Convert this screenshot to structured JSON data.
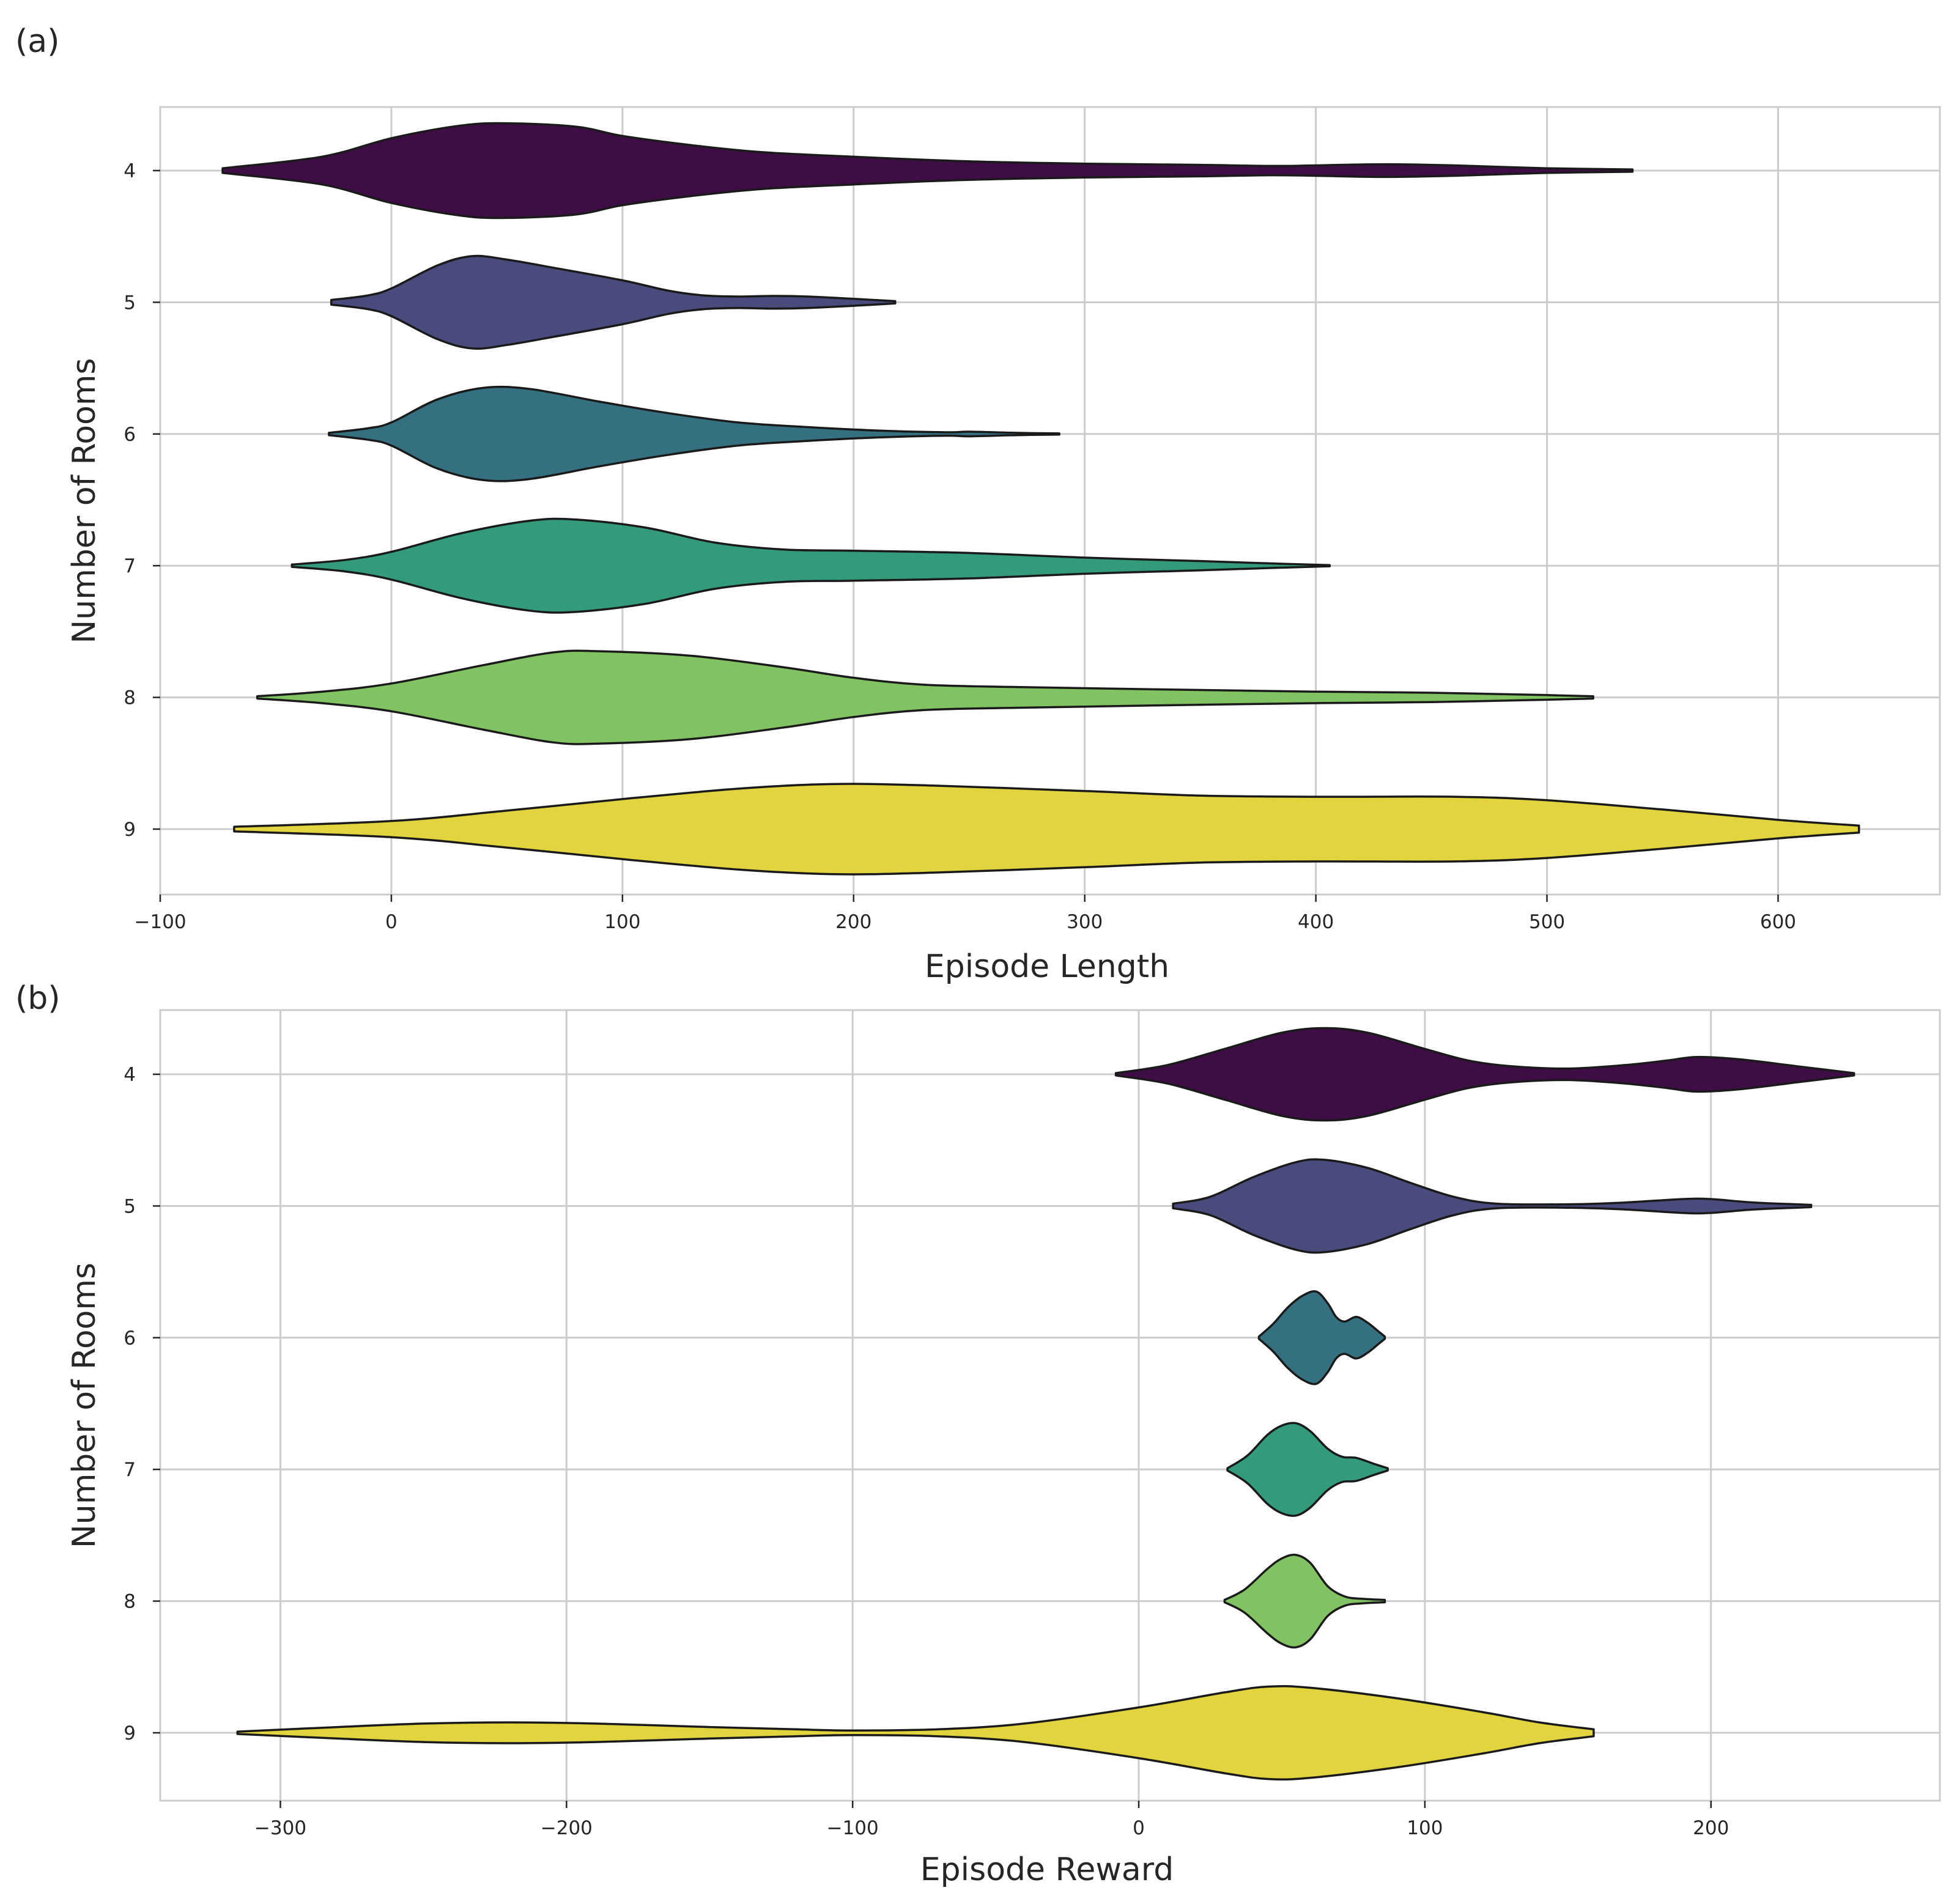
{
  "chart_data": [
    {
      "type": "violin",
      "panel_label": "(a)",
      "orientation": "horizontal",
      "xlabel": "Episode Length",
      "ylabel": "Number of Rooms",
      "xlim": [
        -100,
        670
      ],
      "xticks": [
        -100,
        0,
        100,
        200,
        300,
        400,
        500,
        600
      ],
      "xtick_labels": [
        "−100",
        "0",
        "100",
        "200",
        "300",
        "400",
        "500",
        "600"
      ],
      "categories": [
        "4",
        "5",
        "6",
        "7",
        "8",
        "9"
      ],
      "grid": true,
      "series": [
        {
          "category": "4",
          "color": "#3f0d46",
          "range": [
            -73,
            537
          ],
          "profile": [
            [
              -73,
              0.02
            ],
            [
              -30,
              0.12
            ],
            [
              0,
              0.28
            ],
            [
              30,
              0.39
            ],
            [
              50,
              0.41
            ],
            [
              80,
              0.38
            ],
            [
              100,
              0.3
            ],
            [
              130,
              0.22
            ],
            [
              160,
              0.16
            ],
            [
              200,
              0.12
            ],
            [
              250,
              0.08
            ],
            [
              300,
              0.06
            ],
            [
              350,
              0.05
            ],
            [
              380,
              0.04
            ],
            [
              400,
              0.045
            ],
            [
              430,
              0.055
            ],
            [
              460,
              0.045
            ],
            [
              500,
              0.02
            ],
            [
              537,
              0.01
            ]
          ]
        },
        {
          "category": "5",
          "color": "#484b7b",
          "range": [
            -26,
            218
          ],
          "profile": [
            [
              -26,
              0.02
            ],
            [
              -10,
              0.06
            ],
            [
              0,
              0.12
            ],
            [
              20,
              0.32
            ],
            [
              35,
              0.4
            ],
            [
              50,
              0.37
            ],
            [
              70,
              0.3
            ],
            [
              100,
              0.19
            ],
            [
              120,
              0.1
            ],
            [
              135,
              0.06
            ],
            [
              150,
              0.05
            ],
            [
              165,
              0.055
            ],
            [
              180,
              0.05
            ],
            [
              200,
              0.03
            ],
            [
              218,
              0.01
            ]
          ]
        },
        {
          "category": "6",
          "color": "#357081",
          "range": [
            -27,
            289
          ],
          "profile": [
            [
              -27,
              0.01
            ],
            [
              -10,
              0.05
            ],
            [
              0,
              0.1
            ],
            [
              20,
              0.3
            ],
            [
              40,
              0.4
            ],
            [
              60,
              0.39
            ],
            [
              90,
              0.28
            ],
            [
              120,
              0.18
            ],
            [
              150,
              0.1
            ],
            [
              180,
              0.06
            ],
            [
              210,
              0.03
            ],
            [
              240,
              0.015
            ],
            [
              250,
              0.02
            ],
            [
              270,
              0.01
            ],
            [
              289,
              0.005
            ]
          ]
        },
        {
          "category": "7",
          "color": "#339a7c",
          "range": [
            -43,
            406
          ],
          "profile": [
            [
              -43,
              0.01
            ],
            [
              -20,
              0.05
            ],
            [
              0,
              0.12
            ],
            [
              30,
              0.28
            ],
            [
              60,
              0.39
            ],
            [
              80,
              0.4
            ],
            [
              110,
              0.33
            ],
            [
              140,
              0.2
            ],
            [
              170,
              0.14
            ],
            [
              200,
              0.13
            ],
            [
              250,
              0.11
            ],
            [
              300,
              0.07
            ],
            [
              350,
              0.04
            ],
            [
              380,
              0.02
            ],
            [
              406,
              0.005
            ]
          ]
        },
        {
          "category": "8",
          "color": "#81c362",
          "range": [
            -58,
            520
          ],
          "profile": [
            [
              -58,
              0.01
            ],
            [
              -30,
              0.05
            ],
            [
              0,
              0.12
            ],
            [
              40,
              0.28
            ],
            [
              70,
              0.39
            ],
            [
              90,
              0.4
            ],
            [
              130,
              0.36
            ],
            [
              170,
              0.26
            ],
            [
              200,
              0.17
            ],
            [
              230,
              0.11
            ],
            [
              270,
              0.09
            ],
            [
              330,
              0.07
            ],
            [
              400,
              0.05
            ],
            [
              450,
              0.04
            ],
            [
              500,
              0.02
            ],
            [
              520,
              0.01
            ]
          ]
        },
        {
          "category": "9",
          "color": "#e1d43e",
          "range": [
            -68,
            635
          ],
          "profile": [
            [
              -68,
              0.02
            ],
            [
              0,
              0.07
            ],
            [
              50,
              0.16
            ],
            [
              100,
              0.26
            ],
            [
              150,
              0.35
            ],
            [
              190,
              0.39
            ],
            [
              230,
              0.38
            ],
            [
              300,
              0.33
            ],
            [
              350,
              0.29
            ],
            [
              400,
              0.28
            ],
            [
              460,
              0.28
            ],
            [
              500,
              0.25
            ],
            [
              550,
              0.17
            ],
            [
              600,
              0.08
            ],
            [
              635,
              0.03
            ]
          ]
        }
      ]
    },
    {
      "type": "violin",
      "panel_label": "(b)",
      "orientation": "horizontal",
      "xlabel": "Episode Reward",
      "ylabel": "Number of Rooms",
      "xlim": [
        -342,
        280
      ],
      "xticks": [
        -300,
        -200,
        -100,
        0,
        100,
        200
      ],
      "xtick_labels": [
        "−300",
        "−200",
        "−100",
        "0",
        "100",
        "200"
      ],
      "categories": [
        "4",
        "5",
        "6",
        "7",
        "8",
        "9"
      ],
      "grid": true,
      "series": [
        {
          "category": "4",
          "color": "#3f0d46",
          "range": [
            -8,
            250
          ],
          "profile": [
            [
              -8,
              0.01
            ],
            [
              10,
              0.08
            ],
            [
              30,
              0.22
            ],
            [
              50,
              0.36
            ],
            [
              65,
              0.4
            ],
            [
              80,
              0.36
            ],
            [
              100,
              0.22
            ],
            [
              115,
              0.12
            ],
            [
              130,
              0.07
            ],
            [
              150,
              0.05
            ],
            [
              170,
              0.08
            ],
            [
              185,
              0.12
            ],
            [
              195,
              0.15
            ],
            [
              210,
              0.13
            ],
            [
              230,
              0.07
            ],
            [
              250,
              0.01
            ]
          ]
        },
        {
          "category": "5",
          "color": "#484b7b",
          "range": [
            12,
            235
          ],
          "profile": [
            [
              12,
              0.02
            ],
            [
              25,
              0.08
            ],
            [
              40,
              0.25
            ],
            [
              55,
              0.38
            ],
            [
              65,
              0.4
            ],
            [
              80,
              0.33
            ],
            [
              95,
              0.2
            ],
            [
              110,
              0.08
            ],
            [
              125,
              0.02
            ],
            [
              150,
              0.015
            ],
            [
              170,
              0.03
            ],
            [
              190,
              0.06
            ],
            [
              200,
              0.06
            ],
            [
              215,
              0.03
            ],
            [
              235,
              0.01
            ]
          ]
        },
        {
          "category": "6",
          "color": "#357081",
          "range": [
            42,
            86
          ],
          "profile": [
            [
              42,
              0.01
            ],
            [
              47,
              0.12
            ],
            [
              52,
              0.26
            ],
            [
              57,
              0.36
            ],
            [
              62,
              0.4
            ],
            [
              66,
              0.3
            ],
            [
              69,
              0.18
            ],
            [
              72,
              0.14
            ],
            [
              76,
              0.18
            ],
            [
              80,
              0.13
            ],
            [
              84,
              0.05
            ],
            [
              86,
              0.01
            ]
          ]
        },
        {
          "category": "7",
          "color": "#339a7c",
          "range": [
            31,
            87
          ],
          "profile": [
            [
              31,
              0.01
            ],
            [
              38,
              0.12
            ],
            [
              45,
              0.3
            ],
            [
              50,
              0.38
            ],
            [
              55,
              0.4
            ],
            [
              60,
              0.33
            ],
            [
              66,
              0.18
            ],
            [
              71,
              0.11
            ],
            [
              76,
              0.1
            ],
            [
              82,
              0.05
            ],
            [
              87,
              0.01
            ]
          ]
        },
        {
          "category": "8",
          "color": "#81c362",
          "range": [
            30,
            86
          ],
          "profile": [
            [
              30,
              0.01
            ],
            [
              37,
              0.1
            ],
            [
              45,
              0.28
            ],
            [
              50,
              0.37
            ],
            [
              55,
              0.4
            ],
            [
              60,
              0.33
            ],
            [
              66,
              0.13
            ],
            [
              72,
              0.04
            ],
            [
              78,
              0.02
            ],
            [
              86,
              0.01
            ]
          ]
        },
        {
          "category": "9",
          "color": "#e1d43e",
          "range": [
            -315,
            159
          ],
          "profile": [
            [
              -315,
              0.01
            ],
            [
              -280,
              0.05
            ],
            [
              -250,
              0.08
            ],
            [
              -220,
              0.09
            ],
            [
              -190,
              0.08
            ],
            [
              -150,
              0.05
            ],
            [
              -120,
              0.03
            ],
            [
              -100,
              0.02
            ],
            [
              -70,
              0.03
            ],
            [
              -40,
              0.08
            ],
            [
              0,
              0.22
            ],
            [
              30,
              0.35
            ],
            [
              45,
              0.4
            ],
            [
              60,
              0.39
            ],
            [
              90,
              0.3
            ],
            [
              120,
              0.18
            ],
            [
              140,
              0.09
            ],
            [
              159,
              0.03
            ]
          ]
        }
      ]
    }
  ]
}
